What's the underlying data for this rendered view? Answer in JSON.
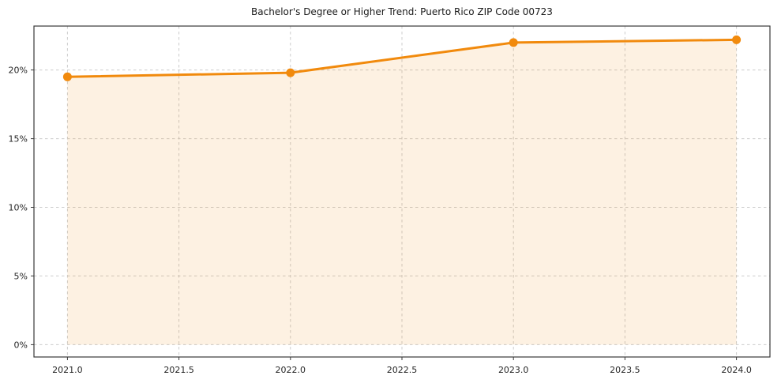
{
  "figure": {
    "background": "#ffffff"
  },
  "chart_data": {
    "type": "area",
    "title": "Bachelor's Degree or Higher Trend: Puerto Rico ZIP Code 00723",
    "x": [
      2021,
      2022,
      2023,
      2024
    ],
    "values": [
      19.5,
      19.8,
      22.0,
      22.2
    ],
    "xlabel": "",
    "ylabel": "",
    "xlim": [
      2020.85,
      2024.15
    ],
    "ylim": [
      -0.9,
      23.2
    ],
    "xtick_values": [
      2021.0,
      2021.5,
      2022.0,
      2022.5,
      2023.0,
      2023.5,
      2024.0
    ],
    "xtick_labels": [
      "2021.0",
      "2021.5",
      "2022.0",
      "2022.5",
      "2023.0",
      "2023.5",
      "2024.0"
    ],
    "ytick_values": [
      0,
      5,
      10,
      15,
      20
    ],
    "ytick_labels": [
      "0%",
      "5%",
      "10%",
      "15%",
      "20%"
    ],
    "grid": true,
    "grid_style": "dashed",
    "legend_position": "none",
    "line_color": "#f18a0d",
    "line_width": 3,
    "marker": "circle",
    "marker_color": "#f18a0d",
    "marker_radius": 5.5,
    "fill_color": "#f18a0d",
    "fill_opacity": 0.12,
    "grid_color": "#cccccc",
    "axis_color": "#3a3a3a",
    "tick_label_color": "#262626",
    "title_color": "#1a1a1a"
  }
}
